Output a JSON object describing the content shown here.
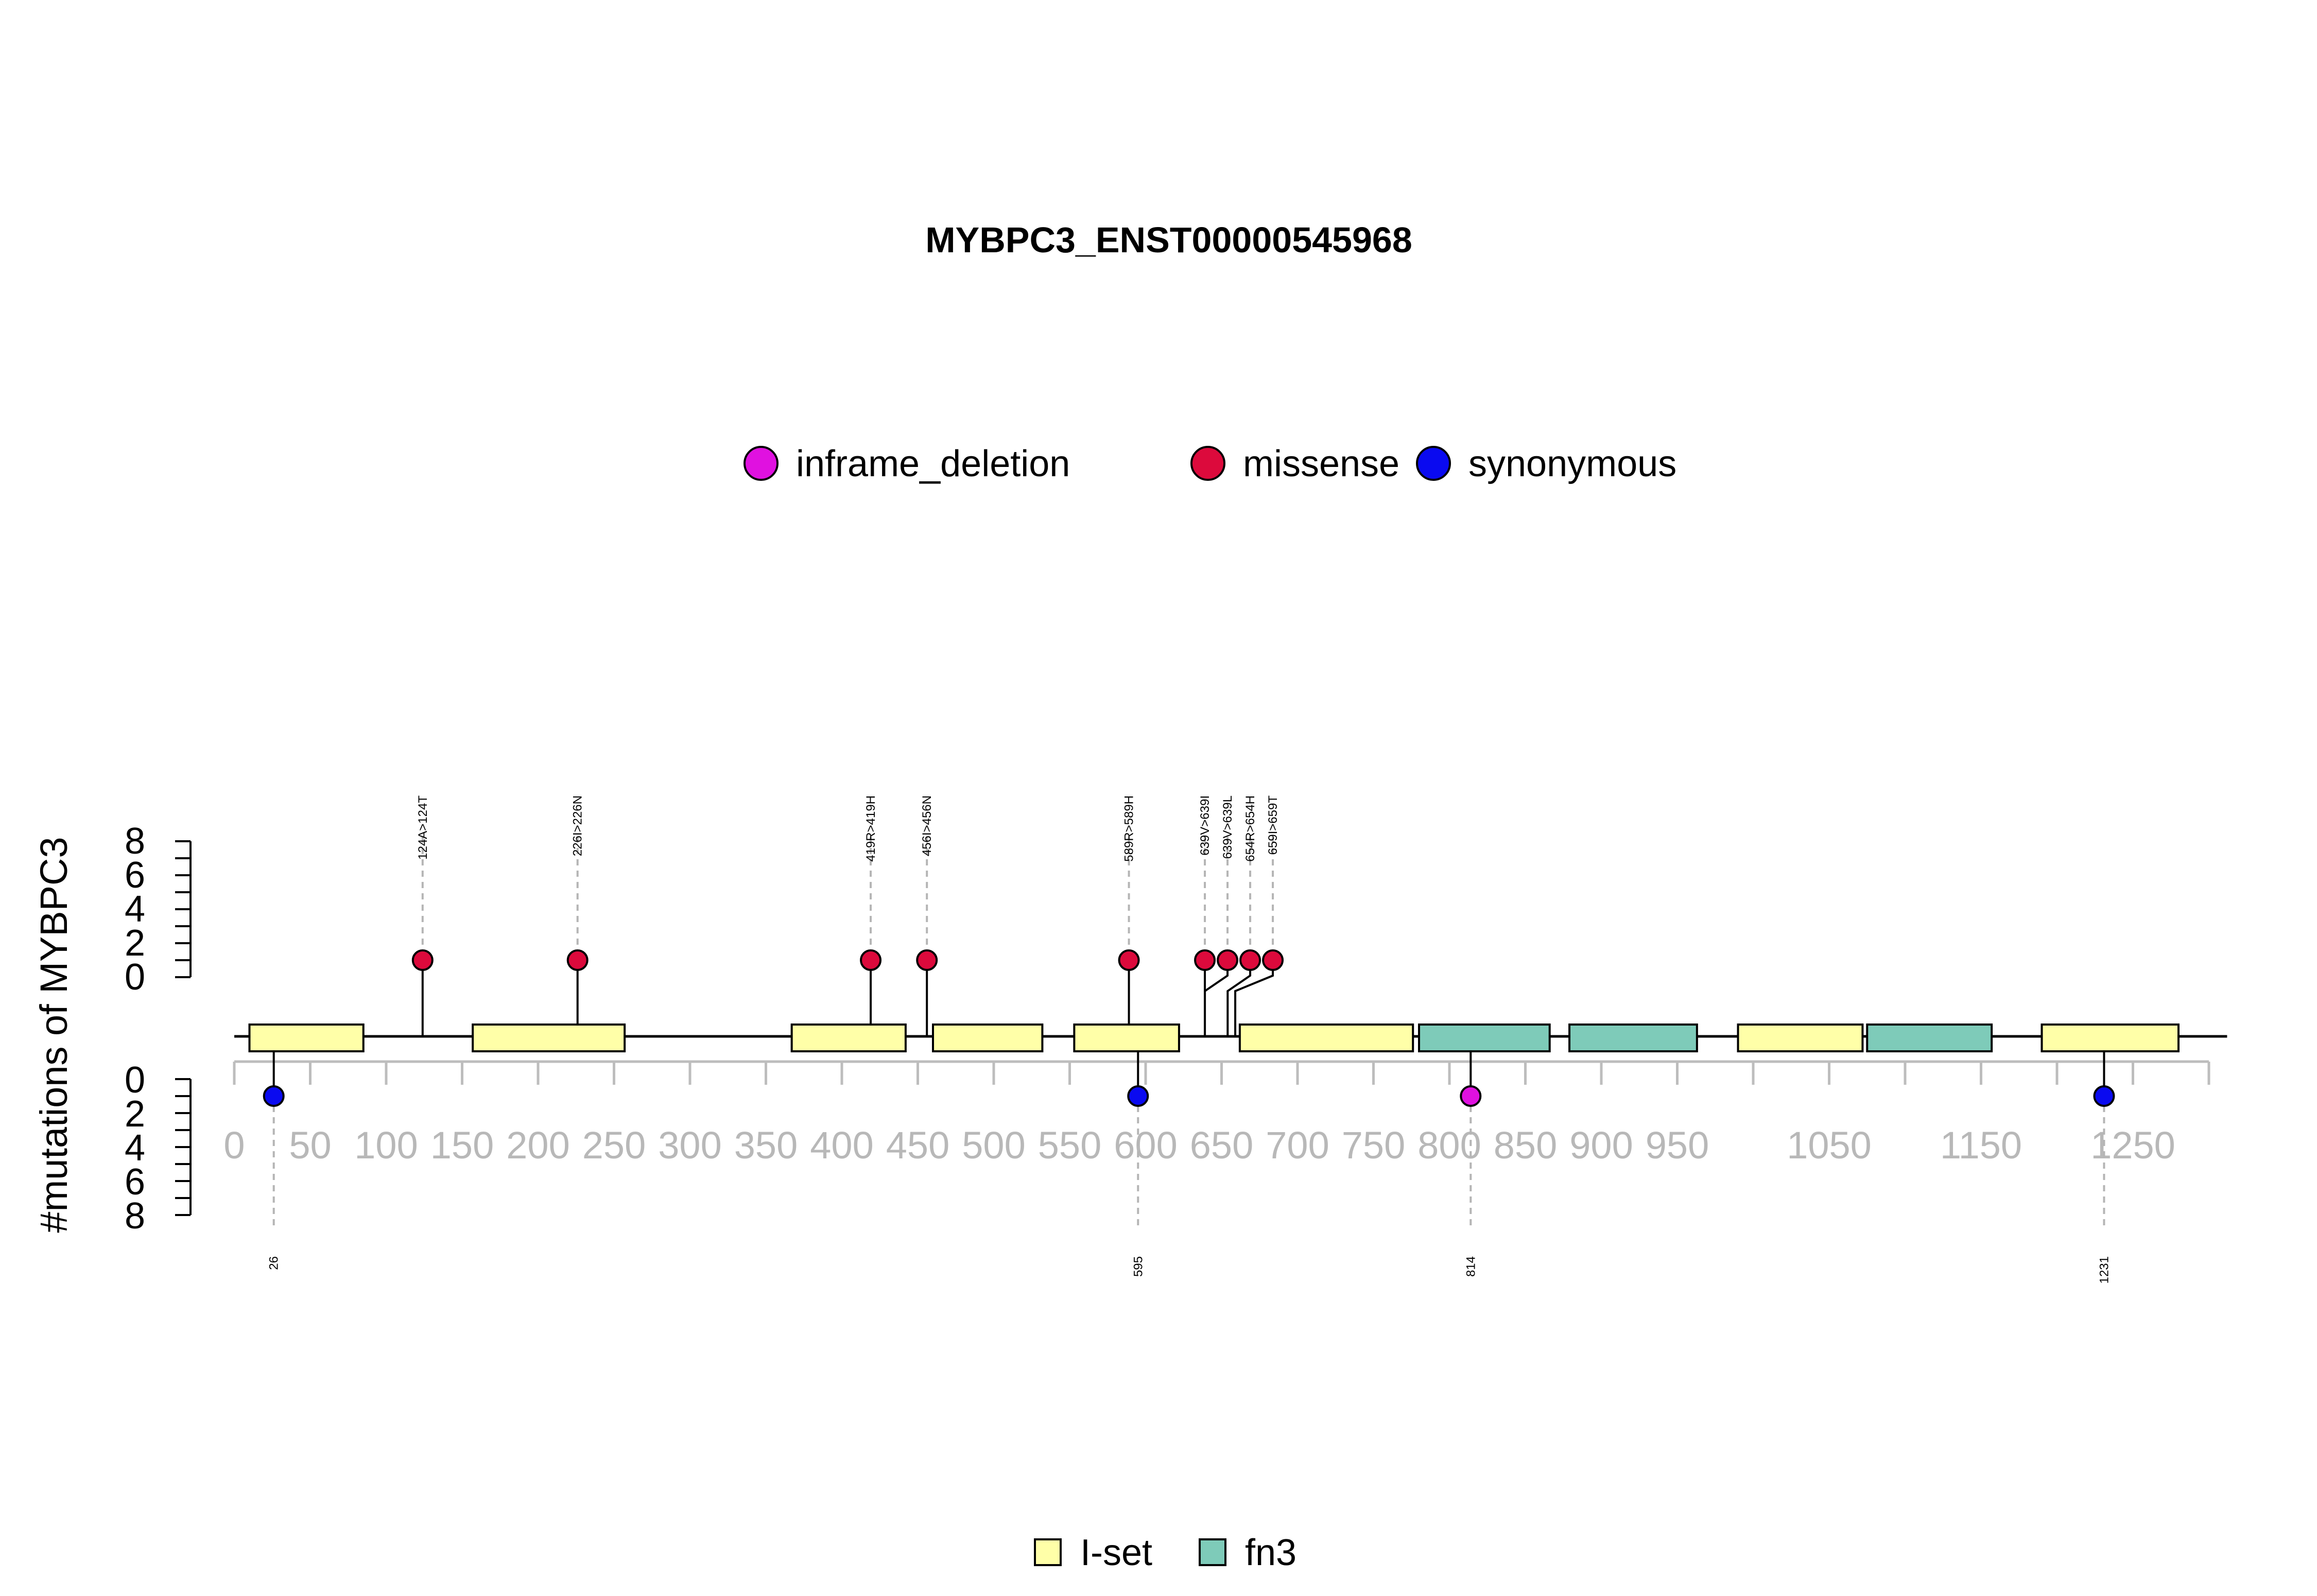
{
  "chart_data": {
    "type": "lollipop",
    "title": "MYBPC3_ENST00000545968",
    "ylabel": "#mutations of MYBPC3",
    "xlim": [
      0,
      1312
    ],
    "x_ticks_major": [
      0,
      50,
      100,
      150,
      200,
      250,
      300,
      350,
      400,
      450,
      500,
      550,
      600,
      650,
      700,
      750,
      800,
      850,
      900,
      950,
      1050,
      1150,
      1250
    ],
    "x_ticks_minor": [
      1000,
      1100,
      1200,
      1300
    ],
    "y_axis_upper": {
      "ticks": [
        0,
        2,
        4,
        6,
        8
      ],
      "range": [
        0,
        8
      ]
    },
    "y_axis_lower": {
      "ticks": [
        0,
        2,
        4,
        6,
        8
      ],
      "range": [
        0,
        8
      ]
    },
    "legend_mutations": [
      {
        "label": "inframe_deletion",
        "color": "#e011e0"
      },
      {
        "label": "missense",
        "color": "#dc0a3c"
      },
      {
        "label": "synonymous",
        "color": "#0a0af0"
      }
    ],
    "legend_domains": [
      {
        "label": "I-set",
        "color": "#ffffa8"
      },
      {
        "label": "fn3",
        "color": "#7ecbb9"
      }
    ],
    "domains": [
      {
        "name": "I-set",
        "start": 10,
        "end": 85
      },
      {
        "name": "I-set",
        "start": 157,
        "end": 257
      },
      {
        "name": "I-set",
        "start": 367,
        "end": 442
      },
      {
        "name": "I-set",
        "start": 460,
        "end": 532
      },
      {
        "name": "I-set",
        "start": 553,
        "end": 622
      },
      {
        "name": "I-set",
        "start": 662,
        "end": 776
      },
      {
        "name": "fn3",
        "start": 780,
        "end": 866
      },
      {
        "name": "fn3",
        "start": 879,
        "end": 963
      },
      {
        "name": "I-set",
        "start": 990,
        "end": 1072
      },
      {
        "name": "fn3",
        "start": 1075,
        "end": 1157
      },
      {
        "name": "I-set",
        "start": 1190,
        "end": 1280
      }
    ],
    "mutations_above": [
      {
        "pos": 124,
        "label": "124A>124T",
        "type": "missense",
        "count": 1
      },
      {
        "pos": 226,
        "label": "226I>226N",
        "type": "missense",
        "count": 1
      },
      {
        "pos": 419,
        "label": "419R>419H",
        "type": "missense",
        "count": 1
      },
      {
        "pos": 456,
        "label": "456I>456N",
        "type": "missense",
        "count": 1
      },
      {
        "pos": 589,
        "label": "589R>589H",
        "type": "missense",
        "count": 1
      },
      {
        "pos": 639,
        "label": "639V>639I",
        "type": "missense",
        "count": 1
      },
      {
        "pos": 639,
        "label": "639V>639L",
        "type": "missense",
        "count": 1
      },
      {
        "pos": 654,
        "label": "654R>654H",
        "type": "missense",
        "count": 1
      },
      {
        "pos": 659,
        "label": "659I>659T",
        "type": "missense",
        "count": 1
      }
    ],
    "mutations_below": [
      {
        "pos": 26,
        "label": "26",
        "type": "synonymous",
        "count": 1
      },
      {
        "pos": 595,
        "label": "595",
        "type": "synonymous",
        "count": 1
      },
      {
        "pos": 814,
        "label": "814",
        "type": "inframe_deletion",
        "count": 1
      },
      {
        "pos": 1231,
        "label": "1231",
        "type": "synonymous",
        "count": 1
      }
    ]
  }
}
